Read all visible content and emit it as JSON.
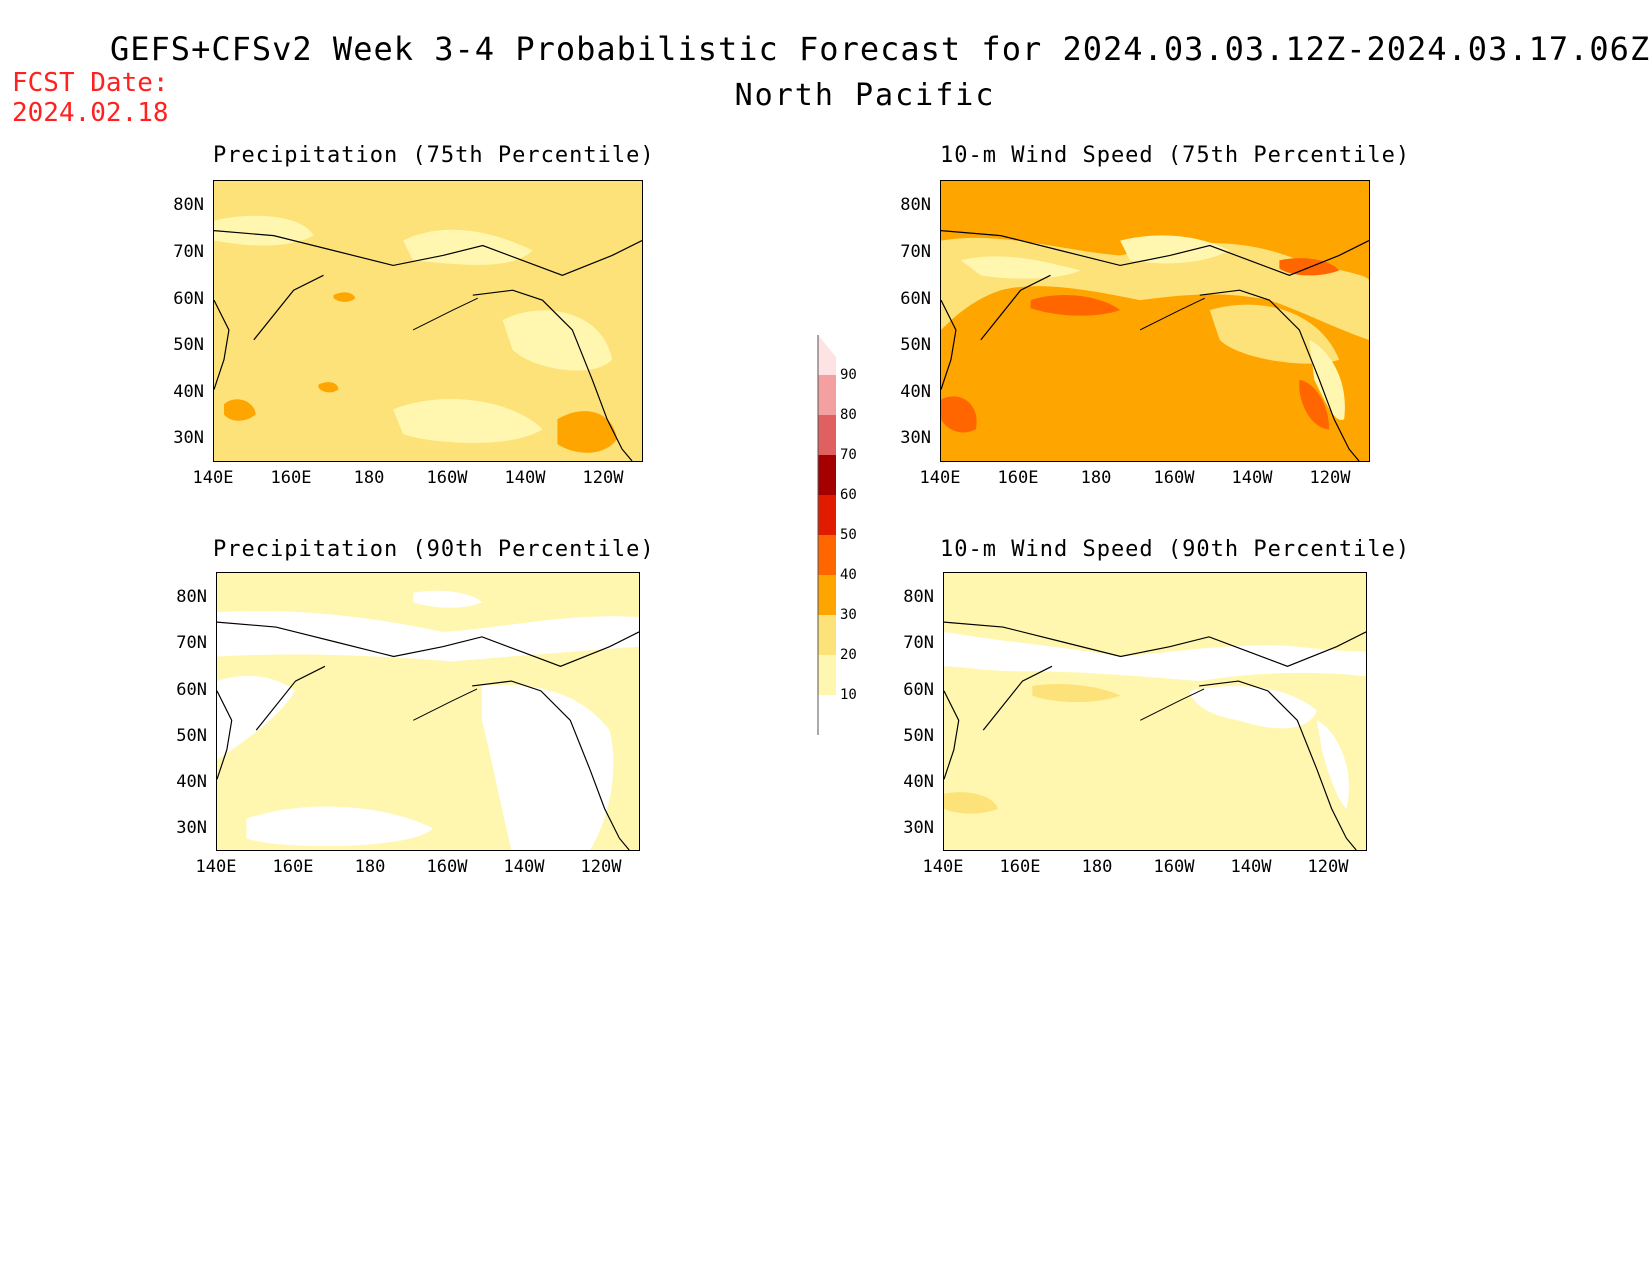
{
  "header": {
    "title": "GEFS+CFSv2 Week 3-4 Probabilistic Forecast for 2024.03.03.12Z-2024.03.17.06Z",
    "region": "North Pacific",
    "fcst_date_label": "FCST Date:",
    "fcst_date_value": "2024.02.18"
  },
  "axes": {
    "lat_labels": [
      "80N",
      "70N",
      "60N",
      "50N",
      "40N",
      "30N"
    ],
    "lon_labels": [
      "140E",
      "160E",
      "180",
      "160W",
      "140W",
      "120W"
    ]
  },
  "panels": [
    {
      "title": "Precipitation (75th Percentile)",
      "dominant_category": "20-30"
    },
    {
      "title": "10-m Wind Speed (75th Percentile)",
      "dominant_category": "30-40"
    },
    {
      "title": "Precipitation (90th Percentile)",
      "dominant_category": "10-20"
    },
    {
      "title": "10-m Wind Speed (90th Percentile)",
      "dominant_category": "10-20"
    }
  ],
  "colorbar": {
    "labels": [
      "90",
      "80",
      "70",
      "60",
      "50",
      "40",
      "30",
      "20",
      "10"
    ],
    "colors": [
      "#fde3e3",
      "#f4a0a0",
      "#e06060",
      "#a50000",
      "#e01b00",
      "#ff6600",
      "#ffa500",
      "#fde27a",
      "#fff7b0"
    ]
  },
  "colors": {
    "white": "#ffffff",
    "light_yellow": "#fff7b0",
    "yellow": "#fde27a",
    "orange": "#ffa500",
    "dark_orange": "#ff6600",
    "fcst_red": "#ff2020"
  }
}
